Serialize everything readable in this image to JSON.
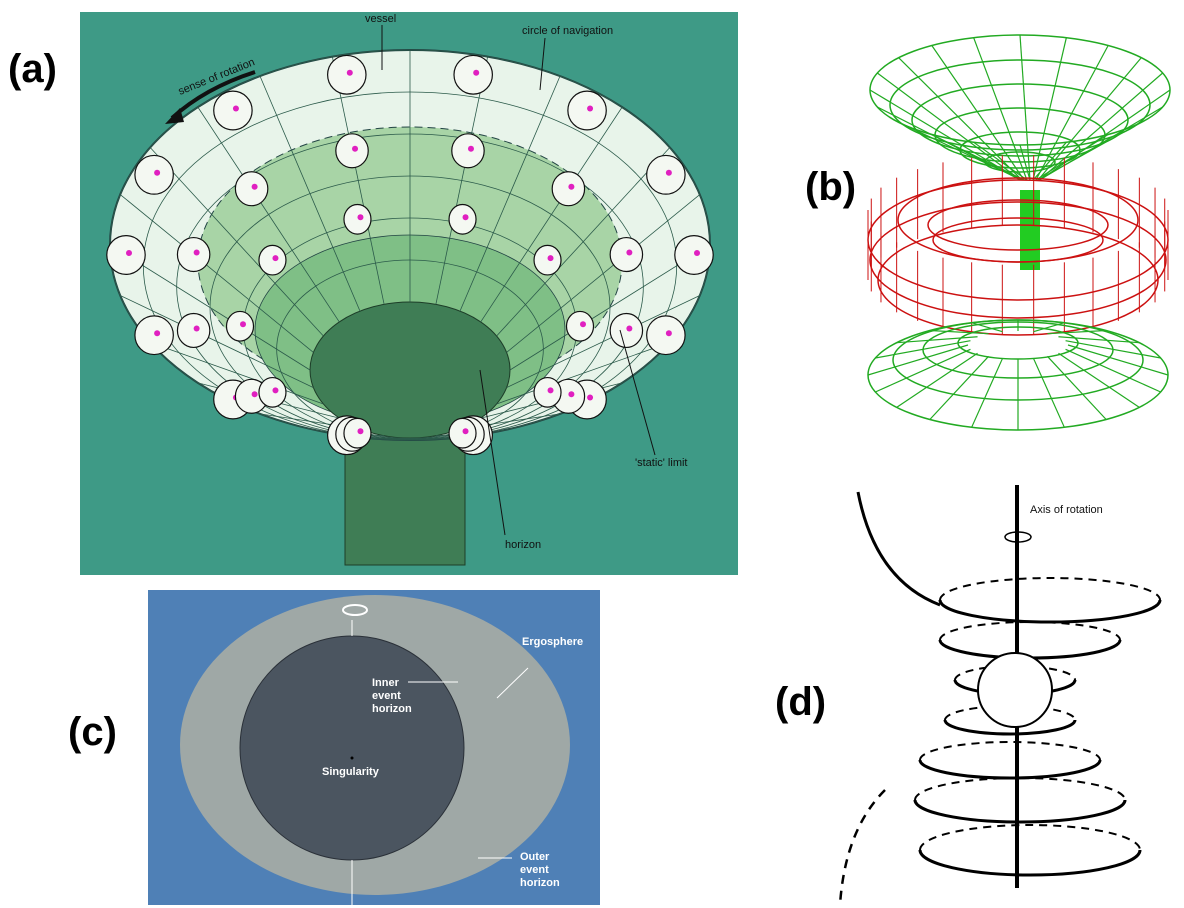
{
  "panels": [
    {
      "label": "(a)",
      "annotations": [
        "vessel",
        "circle of navigation",
        "sense of rotation",
        "'static' limit",
        "horizon"
      ]
    },
    {
      "label": "(b)"
    },
    {
      "label": "(c)",
      "annotations": [
        "Ergosphere",
        [
          "Inner",
          "event",
          "horizon"
        ],
        "Singularity",
        [
          "Outer",
          "event",
          "horizon"
        ]
      ]
    },
    {
      "label": "(d)",
      "annotations": [
        "Axis of rotation"
      ]
    }
  ]
}
